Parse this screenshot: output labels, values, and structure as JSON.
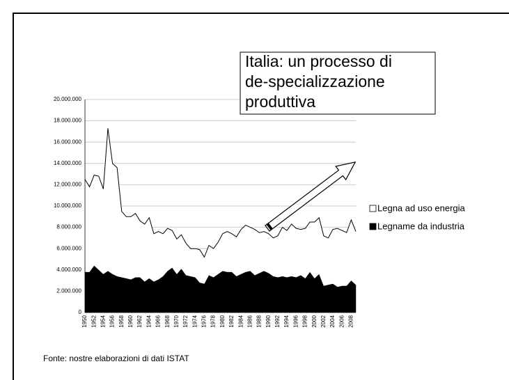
{
  "chart_data": {
    "type": "stacked-area",
    "annotation": [
      "Italia: un processo di",
      "de-specializzazione",
      "produttiva"
    ],
    "source": "Fonte: nostre elaborazioni di dati ISTAT",
    "categories": [
      1950,
      null,
      1952,
      null,
      1954,
      null,
      1956,
      null,
      1958,
      null,
      1960,
      null,
      1962,
      null,
      1964,
      null,
      1966,
      null,
      1968,
      null,
      1970,
      null,
      1972,
      null,
      1974,
      null,
      1976,
      null,
      1978,
      null,
      1980,
      null,
      1982,
      null,
      1984,
      null,
      1986,
      null,
      1988,
      null,
      1990,
      null,
      1992,
      null,
      1994,
      null,
      1996,
      null,
      1998,
      null,
      2000,
      null,
      2002,
      null,
      2004,
      null,
      2006,
      null,
      2008,
      null
    ],
    "series": [
      {
        "name": "Legna ad uso energia",
        "color": "#ffffff",
        "values": [
          8700000,
          8000000,
          8500000,
          8800000,
          8000000,
          13400000,
          10400000,
          10200000,
          6200000,
          5800000,
          5900000,
          6000000,
          5300000,
          5400000,
          5700000,
          4500000,
          4500000,
          4000000,
          4000000,
          3500000,
          3300000,
          3200000,
          3000000,
          2600000,
          2700000,
          3100000,
          2500000,
          2800000,
          2700000,
          3000000,
          3500000,
          3800000,
          3600000,
          3700000,
          4200000,
          4400000,
          4100000,
          4300000,
          3800000,
          3700000,
          3700000,
          3600000,
          3900000,
          4600000,
          4400000,
          4900000,
          4600000,
          4300000,
          4700000,
          4700000,
          5300000,
          5300000,
          4700000,
          4400000,
          5100000,
          5500000,
          5200000,
          5000000,
          5700000,
          5000000
        ]
      },
      {
        "name": "Legname da industria",
        "color": "#000000",
        "values": [
          3800000,
          3800000,
          4400000,
          4000000,
          3600000,
          3900000,
          3600000,
          3400000,
          3300000,
          3200000,
          3100000,
          3300000,
          3300000,
          2900000,
          3200000,
          2900000,
          3100000,
          3400000,
          3900000,
          4200000,
          3600000,
          4100000,
          3500000,
          3400000,
          3300000,
          2800000,
          2700000,
          3500000,
          3300000,
          3600000,
          3900000,
          3800000,
          3800000,
          3400000,
          3600000,
          3800000,
          3900000,
          3500000,
          3700000,
          3900000,
          3700000,
          3400000,
          3300000,
          3400000,
          3300000,
          3400000,
          3300000,
          3500000,
          3200000,
          3800000,
          3200000,
          3600000,
          2500000,
          2600000,
          2700000,
          2400000,
          2500000,
          2500000,
          3000000,
          2600000
        ]
      }
    ],
    "ylim": [
      0,
      20000000
    ],
    "yticks": [
      {
        "value": 0,
        "label": "0"
      },
      {
        "value": 2000000,
        "label": "2.000.000"
      },
      {
        "value": 4000000,
        "label": "4.000.000"
      },
      {
        "value": 6000000,
        "label": "6.000.000"
      },
      {
        "value": 8000000,
        "label": "8.000.000"
      },
      {
        "value": 10000000,
        "label": "10.000.000"
      },
      {
        "value": 12000000,
        "label": "12.000.000"
      },
      {
        "value": 14000000,
        "label": "14.000.000"
      },
      {
        "value": 16000000,
        "label": "16.000.000"
      },
      {
        "value": 18000000,
        "label": "18.000.000"
      },
      {
        "value": 20000000,
        "label": "20.000.000"
      }
    ],
    "grid": true,
    "legend": "right"
  }
}
